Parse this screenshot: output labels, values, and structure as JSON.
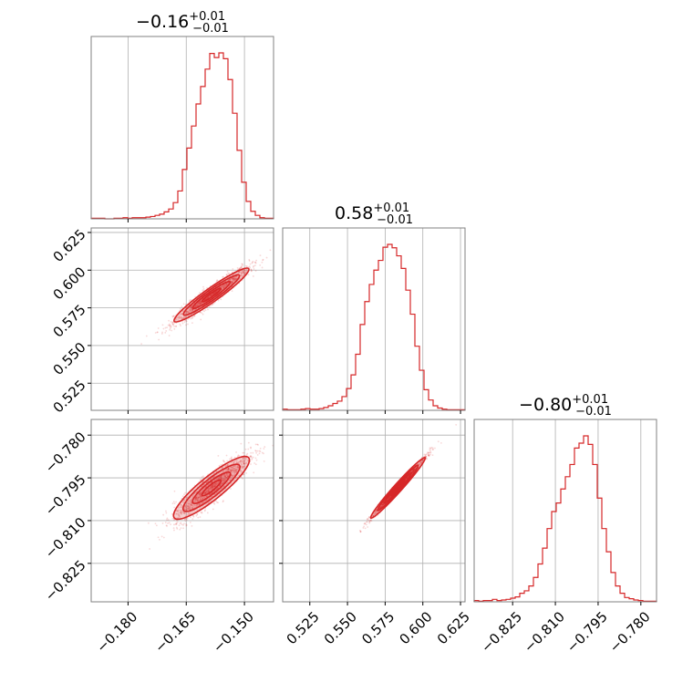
{
  "chart_data": {
    "type": "corner",
    "color": "#d62728",
    "grid": true,
    "parameters": [
      {
        "title": {
          "main": "−0.16",
          "sup": "+0.01",
          "sub": "−0.01"
        },
        "range": [
          -0.1895,
          -0.1425
        ],
        "ticks": [
          -0.18,
          -0.165,
          -0.15
        ],
        "ticklabels": [
          "−0.180",
          "−0.165",
          "−0.150"
        ],
        "hist": [
          1,
          1,
          1,
          0,
          0,
          1,
          1,
          2,
          1,
          2,
          2,
          2,
          3,
          4,
          6,
          8,
          12,
          17,
          28,
          48,
          85,
          122,
          160,
          198,
          228,
          258,
          285,
          278,
          286,
          276,
          240,
          182,
          118,
          63,
          30,
          13,
          6,
          2,
          1,
          1
        ]
      },
      {
        "title": {
          "main": "0.58",
          "sup": "+0.01",
          "sub": "−0.01"
        },
        "range": [
          0.507,
          0.628
        ],
        "ticks": [
          0.525,
          0.55,
          0.575,
          0.6,
          0.625
        ],
        "ticklabels": [
          "0.525",
          "0.550",
          "0.575",
          "0.600",
          "0.625"
        ],
        "hist": [
          2,
          1,
          1,
          1,
          2,
          3,
          2,
          2,
          3,
          5,
          8,
          12,
          16,
          24,
          38,
          62,
          98,
          150,
          190,
          220,
          245,
          262,
          285,
          290,
          284,
          270,
          248,
          210,
          168,
          112,
          70,
          36,
          18,
          8,
          4,
          2,
          1,
          1,
          1,
          1
        ]
      },
      {
        "title": {
          "main": "−0.80",
          "sup": "+0.01",
          "sub": "−0.01"
        },
        "range": [
          -0.8385,
          -0.7745
        ],
        "ticks": [
          -0.825,
          -0.81,
          -0.795,
          -0.78
        ],
        "ticklabels": [
          "−0.825",
          "−0.810",
          "−0.795",
          "−0.780"
        ],
        "hist": [
          2,
          1,
          2,
          2,
          4,
          2,
          3,
          4,
          6,
          8,
          14,
          18,
          26,
          40,
          62,
          88,
          120,
          148,
          162,
          185,
          205,
          225,
          252,
          260,
          272,
          258,
          225,
          170,
          120,
          82,
          48,
          26,
          14,
          7,
          5,
          3,
          2,
          1,
          1,
          1
        ]
      }
    ],
    "correlations": [
      {
        "x": 0,
        "y": 1,
        "slope": 1.82,
        "center": [
          -0.1585,
          0.5835
        ],
        "sx": 0.0048,
        "sperp": 0.0028
      },
      {
        "x": 0,
        "y": 2,
        "slope": 1.1,
        "center": [
          -0.1585,
          -0.7985
        ],
        "sx": 0.0048,
        "sperp": 0.0026
      },
      {
        "x": 1,
        "y": 2,
        "slope": 0.59,
        "center": [
          0.5835,
          -0.7985
        ],
        "sx": 0.009,
        "sperp": 0.0007
      }
    ]
  }
}
